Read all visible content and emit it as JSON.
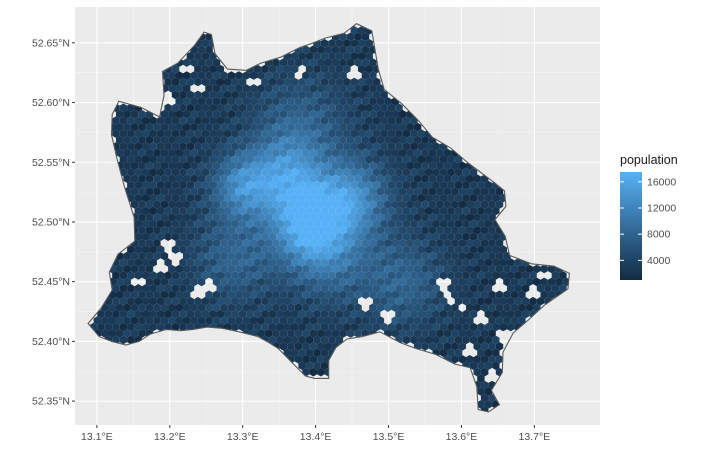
{
  "chart_data": {
    "type": "heatmap",
    "subtype": "hexbin map",
    "title": "",
    "xlabel": "",
    "ylabel": "",
    "x_ticks": [
      "13.1°E",
      "13.2°E",
      "13.3°E",
      "13.4°E",
      "13.5°E",
      "13.6°E",
      "13.7°E"
    ],
    "x_tick_values": [
      13.1,
      13.2,
      13.3,
      13.4,
      13.5,
      13.6,
      13.7
    ],
    "y_ticks": [
      "52.35°N",
      "52.40°N",
      "52.45°N",
      "52.50°N",
      "52.55°N",
      "52.60°N",
      "52.65°N"
    ],
    "y_tick_values": [
      52.35,
      52.4,
      52.45,
      52.5,
      52.55,
      52.6,
      52.65
    ],
    "xlim": [
      13.07,
      13.79
    ],
    "ylim": [
      52.33,
      52.68
    ],
    "grid": true,
    "panel_background": "#ebebeb",
    "grid_color": "#ffffff",
    "outline_color": "#595959",
    "legend": {
      "title": "population",
      "placement": "right",
      "labels": [
        "16000",
        "12000",
        "8000",
        "4000"
      ],
      "values": [
        16000,
        12000,
        8000,
        4000
      ],
      "range": [
        1000,
        17500
      ],
      "low_color": "#132b43",
      "high_color": "#56b1f7"
    },
    "boundary": [
      [
        13.088,
        52.415
      ],
      [
        13.106,
        52.428
      ],
      [
        13.121,
        52.443
      ],
      [
        13.117,
        52.458
      ],
      [
        13.129,
        52.473
      ],
      [
        13.152,
        52.484
      ],
      [
        13.151,
        52.504
      ],
      [
        13.138,
        52.529
      ],
      [
        13.128,
        52.552
      ],
      [
        13.12,
        52.573
      ],
      [
        13.121,
        52.59
      ],
      [
        13.13,
        52.601
      ],
      [
        13.16,
        52.596
      ],
      [
        13.186,
        52.588
      ],
      [
        13.192,
        52.606
      ],
      [
        13.19,
        52.626
      ],
      [
        13.211,
        52.633
      ],
      [
        13.234,
        52.648
      ],
      [
        13.247,
        52.659
      ],
      [
        13.257,
        52.657
      ],
      [
        13.262,
        52.641
      ],
      [
        13.279,
        52.628
      ],
      [
        13.305,
        52.627
      ],
      [
        13.325,
        52.633
      ],
      [
        13.352,
        52.638
      ],
      [
        13.378,
        52.646
      ],
      [
        13.397,
        52.65
      ],
      [
        13.413,
        52.654
      ],
      [
        13.439,
        52.658
      ],
      [
        13.456,
        52.666
      ],
      [
        13.477,
        52.66
      ],
      [
        13.486,
        52.628
      ],
      [
        13.494,
        52.611
      ],
      [
        13.518,
        52.599
      ],
      [
        13.541,
        52.585
      ],
      [
        13.56,
        52.571
      ],
      [
        13.585,
        52.562
      ],
      [
        13.61,
        52.549
      ],
      [
        13.645,
        52.533
      ],
      [
        13.659,
        52.526
      ],
      [
        13.661,
        52.513
      ],
      [
        13.646,
        52.502
      ],
      [
        13.66,
        52.488
      ],
      [
        13.666,
        52.472
      ],
      [
        13.696,
        52.465
      ],
      [
        13.727,
        52.463
      ],
      [
        13.748,
        52.457
      ],
      [
        13.746,
        52.444
      ],
      [
        13.713,
        52.43
      ],
      [
        13.692,
        52.418
      ],
      [
        13.671,
        52.407
      ],
      [
        13.657,
        52.391
      ],
      [
        13.656,
        52.374
      ],
      [
        13.641,
        52.359
      ],
      [
        13.652,
        52.347
      ],
      [
        13.637,
        52.341
      ],
      [
        13.623,
        52.343
      ],
      [
        13.621,
        52.362
      ],
      [
        13.612,
        52.378
      ],
      [
        13.591,
        52.381
      ],
      [
        13.565,
        52.389
      ],
      [
        13.538,
        52.394
      ],
      [
        13.516,
        52.399
      ],
      [
        13.488,
        52.408
      ],
      [
        13.464,
        52.404
      ],
      [
        13.443,
        52.402
      ],
      [
        13.428,
        52.395
      ],
      [
        13.418,
        52.384
      ],
      [
        13.418,
        52.369
      ],
      [
        13.399,
        52.369
      ],
      [
        13.386,
        52.371
      ],
      [
        13.368,
        52.382
      ],
      [
        13.349,
        52.394
      ],
      [
        13.336,
        52.399
      ],
      [
        13.321,
        52.404
      ],
      [
        13.295,
        52.408
      ],
      [
        13.272,
        52.411
      ],
      [
        13.251,
        52.412
      ],
      [
        13.232,
        52.41
      ],
      [
        13.215,
        52.409
      ],
      [
        13.195,
        52.41
      ],
      [
        13.173,
        52.406
      ],
      [
        13.158,
        52.4
      ],
      [
        13.14,
        52.397
      ],
      [
        13.12,
        52.4
      ],
      [
        13.103,
        52.404
      ]
    ],
    "holes": [
      [
        13.195,
        52.48
      ],
      [
        13.185,
        52.463
      ],
      [
        13.21,
        52.47
      ],
      [
        13.16,
        52.45
      ],
      [
        13.24,
        52.44
      ],
      [
        13.255,
        52.448
      ],
      [
        13.225,
        52.628
      ],
      [
        13.237,
        52.612
      ],
      [
        13.196,
        52.603
      ],
      [
        13.318,
        52.617
      ],
      [
        13.378,
        52.624
      ],
      [
        13.455,
        52.625
      ],
      [
        13.575,
        52.447
      ],
      [
        13.6,
        52.428
      ],
      [
        13.625,
        52.418
      ],
      [
        13.65,
        52.447
      ],
      [
        13.66,
        52.405
      ],
      [
        13.61,
        52.392
      ],
      [
        13.7,
        52.44
      ],
      [
        13.71,
        52.455
      ],
      [
        13.645,
        52.37
      ],
      [
        13.585,
        52.435
      ],
      [
        13.468,
        52.43
      ],
      [
        13.5,
        52.42
      ]
    ],
    "hotspots": [
      {
        "lon": 13.39,
        "lat": 52.5,
        "peak": 17000,
        "spread": 0.035
      },
      {
        "lon": 13.3,
        "lat": 52.53,
        "peak": 12000,
        "spread": 0.03
      },
      {
        "lon": 13.45,
        "lat": 52.52,
        "peak": 12500,
        "spread": 0.035
      },
      {
        "lon": 13.36,
        "lat": 52.54,
        "peak": 11000,
        "spread": 0.035
      },
      {
        "lon": 13.42,
        "lat": 52.47,
        "peak": 8000,
        "spread": 0.04
      },
      {
        "lon": 13.29,
        "lat": 52.47,
        "peak": 7000,
        "spread": 0.04
      },
      {
        "lon": 13.52,
        "lat": 52.45,
        "peak": 7000,
        "spread": 0.04
      },
      {
        "lon": 13.38,
        "lat": 52.58,
        "peak": 6500,
        "spread": 0.045
      }
    ],
    "base_population": 2500
  }
}
